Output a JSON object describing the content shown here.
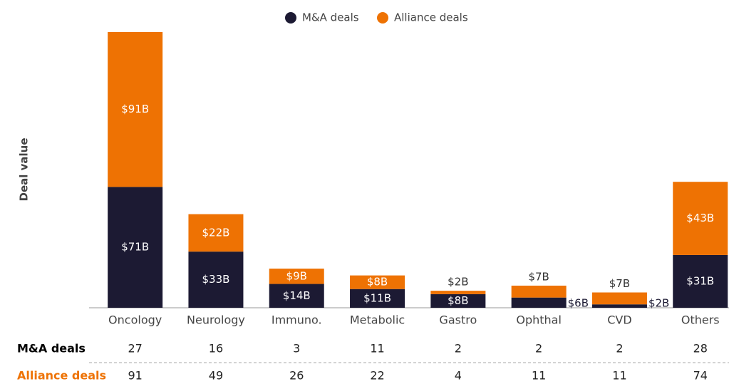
{
  "chart_data": {
    "type": "stacked-bar",
    "y_label": "Deal value",
    "categories": [
      "Oncology",
      "Neurology",
      "Immuno.",
      "Metabolic",
      "Gastro",
      "Ophthal",
      "CVD",
      "Others"
    ],
    "series": [
      {
        "name": "M&A deals",
        "color": "#1c1a33",
        "values": [
          71,
          33,
          14,
          11,
          8,
          6,
          2,
          31
        ],
        "value_labels": [
          "$71B",
          "$33B",
          "$14B",
          "$11B",
          "$8B",
          "$6B",
          "$2B",
          "$31B"
        ]
      },
      {
        "name": "Alliance deals",
        "color": "#ee7203",
        "values": [
          91,
          22,
          9,
          8,
          2,
          7,
          7,
          43
        ],
        "value_labels": [
          "$91B",
          "$22B",
          "$9B",
          "$8B",
          "$2B",
          "$7B",
          "$7B",
          "$43B"
        ]
      }
    ],
    "table": {
      "rows": [
        {
          "name": "M&A deals",
          "color": "#000000",
          "values": [
            27,
            16,
            3,
            11,
            2,
            2,
            2,
            28
          ]
        },
        {
          "name": "Alliance deals",
          "color": "#ee7203",
          "values": [
            91,
            49,
            26,
            22,
            4,
            11,
            11,
            74
          ]
        }
      ]
    }
  }
}
